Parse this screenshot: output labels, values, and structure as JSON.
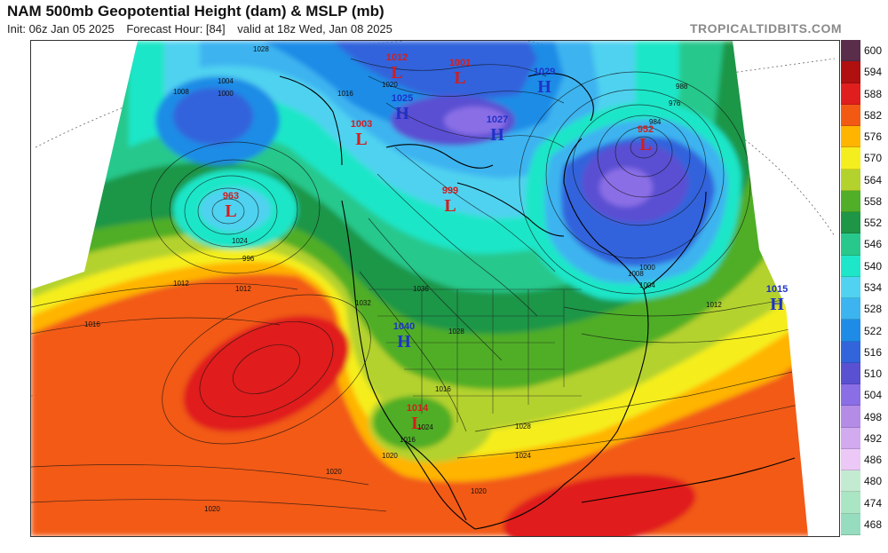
{
  "header": {
    "title": "NAM 500mb Geopotential Height (dam) & MSLP (mb)",
    "init": "Init: 06z Jan 05 2025",
    "forecast_hour": "Forecast Hour: [84]",
    "valid": "valid at 18z Wed, Jan 08 2025",
    "brand": "TROPICALTIDBITS.COM"
  },
  "colorbar": [
    {
      "label": "600",
      "color": "#5a2d4a"
    },
    {
      "label": "594",
      "color": "#b01010"
    },
    {
      "label": "588",
      "color": "#e01e1e"
    },
    {
      "label": "582",
      "color": "#f25a14"
    },
    {
      "label": "576",
      "color": "#ffb400"
    },
    {
      "label": "570",
      "color": "#f5ee1e"
    },
    {
      "label": "564",
      "color": "#b4d22d"
    },
    {
      "label": "558",
      "color": "#50ae28"
    },
    {
      "label": "552",
      "color": "#1e9646"
    },
    {
      "label": "546",
      "color": "#28c88c"
    },
    {
      "label": "540",
      "color": "#1ee6c8"
    },
    {
      "label": "534",
      "color": "#50d2f0"
    },
    {
      "label": "528",
      "color": "#3cb4f0"
    },
    {
      "label": "522",
      "color": "#1e8ce6"
    },
    {
      "label": "516",
      "color": "#3264dc"
    },
    {
      "label": "510",
      "color": "#5a50d2"
    },
    {
      "label": "504",
      "color": "#8a6ee6"
    },
    {
      "label": "498",
      "color": "#b48ce6"
    },
    {
      "label": "492",
      "color": "#d2aaf0"
    },
    {
      "label": "486",
      "color": "#ebc8f5"
    },
    {
      "label": "480",
      "color": "#c3ebd2"
    },
    {
      "label": "474",
      "color": "#aae6c3"
    },
    {
      "label": "468",
      "color": "#96dcbe"
    }
  ],
  "pressure_centers": [
    {
      "type": "L",
      "value": "1012",
      "color": "#d21e1e"
    },
    {
      "type": "L",
      "value": "1001",
      "color": "#d21e1e"
    },
    {
      "type": "L",
      "value": "1003",
      "color": "#d21e1e"
    },
    {
      "type": "L",
      "value": "963",
      "color": "#d21e1e"
    },
    {
      "type": "L",
      "value": "999",
      "color": "#d21e1e"
    },
    {
      "type": "L",
      "value": "952",
      "color": "#d21e1e"
    },
    {
      "type": "L",
      "value": "1014",
      "color": "#d21e1e"
    },
    {
      "type": "H",
      "value": "1025",
      "color": "#1e32c8"
    },
    {
      "type": "H",
      "value": "1027",
      "color": "#1e32c8"
    },
    {
      "type": "H",
      "value": "1029",
      "color": "#1e32c8"
    },
    {
      "type": "H",
      "value": "1015",
      "color": "#1e32c8"
    },
    {
      "type": "H",
      "value": "1040",
      "color": "#1e32c8"
    }
  ],
  "isobar_labels": [
    "1028",
    "1008",
    "1004",
    "1000",
    "1016",
    "1020",
    "1012",
    "996",
    "988",
    "976",
    "984",
    "1024",
    "1036",
    "1032",
    "1028",
    "1016",
    "1024",
    "1020",
    "1016",
    "1020",
    "1024",
    "1028",
    "1020",
    "1012",
    "1008",
    "1004",
    "1000",
    "1012",
    "1016",
    "1020"
  ]
}
